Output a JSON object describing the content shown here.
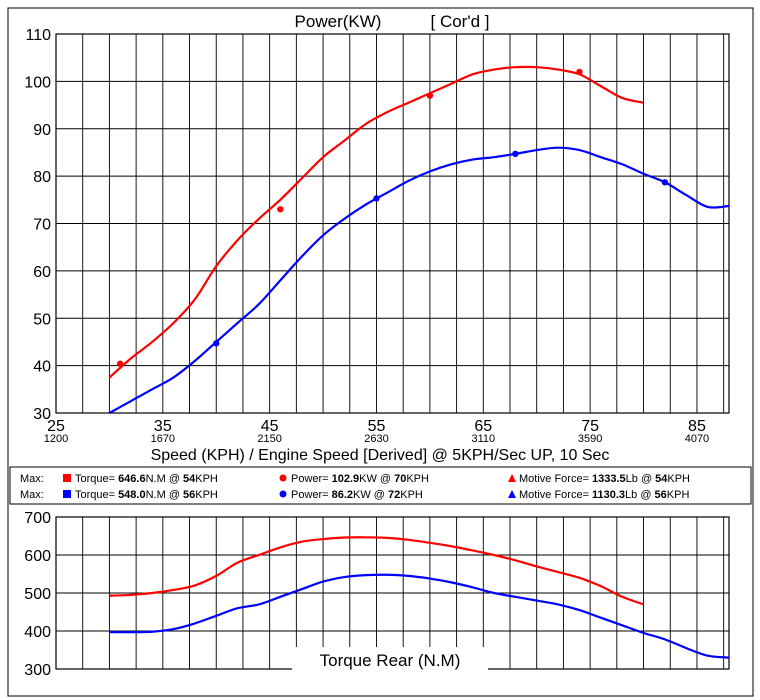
{
  "chart_data": [
    {
      "type": "line",
      "title": "Power(KW)",
      "subtitle": "[ Cor'd ]",
      "xlabel": "Speed (KPH) / Engine Speed [Derived] @ 5KPH/Sec UP, 10 Sec",
      "xlim": [
        25,
        88
      ],
      "ylim": [
        30,
        110
      ],
      "grid": true,
      "x_ticks": [
        25,
        35,
        45,
        55,
        65,
        75,
        85
      ],
      "x_secondary_ticks": [
        "1200",
        "1670",
        "2150",
        "2630",
        "3110",
        "3590",
        "4070"
      ],
      "y_ticks": [
        30,
        40,
        50,
        60,
        70,
        80,
        90,
        100,
        110
      ],
      "series": [
        {
          "color": "#ff0000",
          "markers": [
            [
              31,
              40.4
            ],
            [
              46,
              73
            ],
            [
              60,
              97
            ],
            [
              74,
              102
            ]
          ],
          "x": [
            30,
            32,
            34,
            36,
            38,
            40,
            42,
            44,
            46,
            48,
            50,
            52,
            54,
            56,
            58,
            60,
            62,
            64,
            66,
            68,
            70,
            72,
            74,
            76,
            78,
            80
          ],
          "y": [
            37.5,
            41.5,
            45,
            49,
            54,
            61,
            66.5,
            71,
            75,
            79.5,
            84,
            87.5,
            91,
            93.5,
            95.5,
            97.5,
            99.5,
            101.5,
            102.5,
            103,
            103,
            102.5,
            101.5,
            99,
            96.5,
            95.5
          ]
        },
        {
          "color": "#0000ff",
          "markers": [
            [
              40,
              44.7
            ],
            [
              55,
              75.3
            ],
            [
              68,
              84.7
            ],
            [
              82,
              78.7
            ]
          ],
          "x": [
            30,
            32,
            34,
            36,
            38,
            40,
            42,
            44,
            46,
            48,
            50,
            52,
            54,
            56,
            58,
            60,
            62,
            64,
            66,
            68,
            70,
            72,
            74,
            76,
            78,
            80,
            82,
            84,
            86,
            88
          ],
          "y": [
            30,
            32.5,
            35,
            37.5,
            41,
            45,
            49,
            53,
            58,
            63,
            67.5,
            71,
            74,
            76.5,
            79,
            81,
            82.5,
            83.5,
            84,
            84.7,
            85.5,
            86,
            85.5,
            84,
            82.5,
            80.5,
            78.7,
            76,
            73.5,
            73.7
          ]
        }
      ]
    },
    {
      "type": "line",
      "title": "Torque Rear (N.M)",
      "xlim": [
        25,
        88
      ],
      "ylim": [
        300,
        700
      ],
      "grid": true,
      "y_ticks": [
        300,
        400,
        500,
        600,
        700
      ],
      "series": [
        {
          "color": "#ff0000",
          "x": [
            30,
            32,
            34,
            36,
            38,
            40,
            42,
            44,
            46,
            48,
            50,
            52,
            54,
            56,
            58,
            60,
            62,
            64,
            66,
            68,
            70,
            72,
            74,
            76,
            78,
            80
          ],
          "y": [
            493,
            495,
            500,
            508,
            520,
            545,
            580,
            600,
            620,
            635,
            642,
            646,
            646.6,
            645,
            640,
            632,
            623,
            612,
            600,
            586,
            570,
            555,
            540,
            518,
            490,
            470
          ]
        },
        {
          "color": "#0000ff",
          "x": [
            30,
            32,
            34,
            36,
            38,
            40,
            42,
            44,
            46,
            48,
            50,
            52,
            54,
            56,
            58,
            60,
            62,
            64,
            66,
            68,
            70,
            72,
            74,
            76,
            78,
            80,
            82,
            84,
            86,
            88
          ],
          "y": [
            397,
            397,
            398,
            405,
            420,
            440,
            460,
            470,
            490,
            510,
            530,
            542,
            547,
            548,
            545,
            538,
            528,
            515,
            500,
            490,
            480,
            470,
            455,
            435,
            415,
            395,
            378,
            355,
            335,
            330
          ]
        }
      ]
    }
  ],
  "legend_rows": [
    {
      "max_label": "Max:",
      "color": "#ff0000",
      "torque_label": "Torque=",
      "torque_value": "646.6",
      "torque_unit": "N.M @",
      "torque_at": "54",
      "torque_at_unit": "KPH",
      "power_label": "Power=",
      "power_value": "102.9",
      "power_unit": "KW @",
      "power_at": "70",
      "power_at_unit": "KPH",
      "force_label": "Motive Force=",
      "force_value": "1333.5",
      "force_unit": "Lb @",
      "force_at": "54",
      "force_at_unit": "KPH"
    },
    {
      "max_label": "Max:",
      "color": "#0000ff",
      "torque_label": "Torque=",
      "torque_value": "548.0",
      "torque_unit": "N.M @",
      "torque_at": "56",
      "torque_at_unit": "KPH",
      "power_label": "Power=",
      "power_value": "86.2",
      "power_unit": "KW @",
      "power_at": "72",
      "power_at_unit": "KPH",
      "force_label": "Motive Force=",
      "force_value": "1130.3",
      "force_unit": "Lb @",
      "force_at": "56",
      "force_at_unit": "KPH"
    }
  ]
}
